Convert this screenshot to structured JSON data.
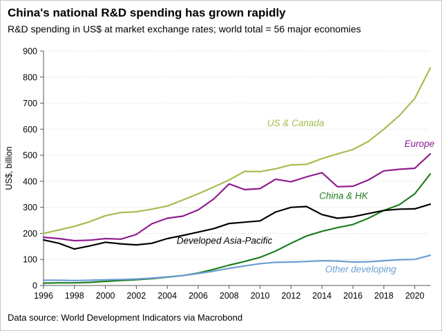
{
  "header": {
    "title": "China's national R&D spending has grown rapidly",
    "subtitle": "R&D spending in US$ at market exchange rates; world total = 56 major economies"
  },
  "footer": {
    "source": "Data source: World Development Indicators via Macrobond"
  },
  "chart_data": {
    "type": "line",
    "title": "China's national R&D spending has grown rapidly",
    "subtitle": "R&D spending in US$ at market exchange rates; world total = 56 major economies",
    "ylabel": "US$, billion",
    "xlabel": "",
    "ylim": [
      0,
      900
    ],
    "yticks": [
      0,
      100,
      200,
      300,
      400,
      500,
      600,
      700,
      800,
      900
    ],
    "x": [
      1996,
      1997,
      1998,
      1999,
      2000,
      2001,
      2002,
      2003,
      2004,
      2005,
      2006,
      2007,
      2008,
      2009,
      2010,
      2011,
      2012,
      2013,
      2014,
      2015,
      2016,
      2017,
      2018,
      2019,
      2020,
      2021
    ],
    "xticks": [
      1996,
      1998,
      2000,
      2002,
      2004,
      2006,
      2008,
      2010,
      2012,
      2014,
      2016,
      2018,
      2020
    ],
    "grid": "horizontal-dotted",
    "grid_color": "#c9c9c9",
    "axis_color": "#555555",
    "series": [
      {
        "name": "US & Canada",
        "color": "#a3bd50",
        "values": [
          200,
          213,
          227,
          245,
          268,
          280,
          283,
          293,
          305,
          328,
          352,
          378,
          405,
          438,
          437,
          448,
          463,
          465,
          487,
          505,
          522,
          553,
          600,
          652,
          718,
          835
        ]
      },
      {
        "name": "Europe",
        "color": "#8e1b8e",
        "values": [
          185,
          180,
          172,
          174,
          180,
          178,
          196,
          237,
          258,
          266,
          290,
          332,
          390,
          368,
          372,
          408,
          398,
          417,
          433,
          379,
          381,
          405,
          440,
          446,
          450,
          505
        ]
      },
      {
        "name": "China & HK",
        "color": "#1e7d1e",
        "values": [
          9,
          10,
          10,
          12,
          16,
          19,
          22,
          26,
          32,
          38,
          48,
          62,
          78,
          92,
          108,
          132,
          162,
          190,
          208,
          222,
          234,
          258,
          288,
          310,
          352,
          428
        ]
      },
      {
        "name": "Developed Asia-Pacific",
        "color": "#000000",
        "values": [
          175,
          162,
          140,
          152,
          166,
          160,
          156,
          162,
          180,
          192,
          205,
          218,
          238,
          243,
          248,
          282,
          300,
          303,
          272,
          258,
          264,
          276,
          288,
          293,
          294,
          312
        ]
      },
      {
        "name": "Other developing",
        "color": "#6a9ed2",
        "values": [
          20,
          20,
          19,
          20,
          22,
          23,
          25,
          28,
          33,
          38,
          46,
          55,
          66,
          75,
          84,
          89,
          90,
          92,
          95,
          94,
          90,
          91,
          95,
          99,
          100,
          116
        ]
      }
    ],
    "labels": [
      {
        "text": "US & Canada",
        "color": "#a3bd50",
        "year": 2012.3,
        "value": 612
      },
      {
        "text": "Europe",
        "color": "#8e1b8e",
        "year": 2020.3,
        "value": 532
      },
      {
        "text": "China & HK",
        "color": "#1e7d1e",
        "year": 2015.4,
        "value": 332
      },
      {
        "text": "Developed Asia-Pacific",
        "color": "#000000",
        "year": 2007.7,
        "value": 160
      },
      {
        "text": "Other developing",
        "color": "#6a9ed2",
        "year": 2016.5,
        "value": 50
      }
    ],
    "legend_position": "inline-labels"
  }
}
